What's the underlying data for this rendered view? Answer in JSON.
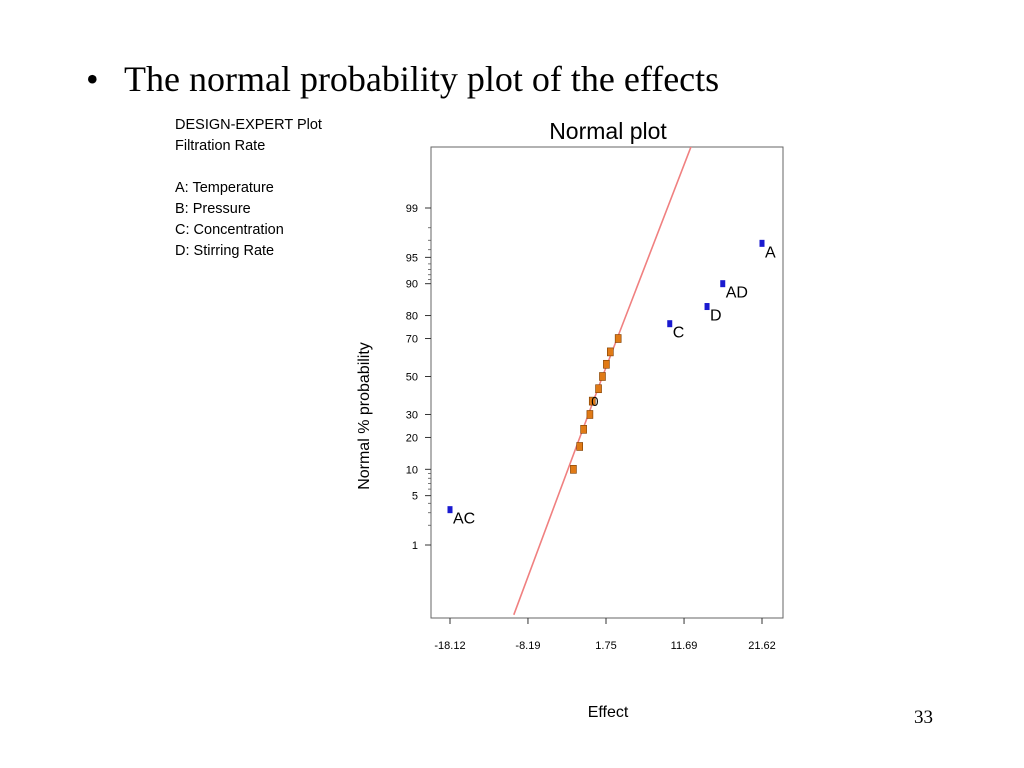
{
  "slide": {
    "title": "The normal probability plot of the effects",
    "bullet": "•",
    "page_number": "33"
  },
  "info_panel": {
    "heading": "DESIGN-EXPERT Plot",
    "response": "Filtration Rate",
    "factors": [
      "A: Temperature",
      "B: Pressure",
      "C: Concentration",
      "D: Stirring Rate"
    ]
  },
  "chart_data": {
    "type": "scatter",
    "title": "Normal plot",
    "xlabel": "Effect",
    "ylabel": "Normal % probability",
    "x_scale": "linear",
    "y_scale": "normal-probability",
    "xlim": [
      -19.5,
      23.5
    ],
    "x_ticks": [
      -18.12,
      -8.19,
      1.75,
      11.69,
      21.62
    ],
    "x_tick_labels": [
      "-18.12",
      "-8.19",
      "1.75",
      "11.69",
      "21.62"
    ],
    "y_ticks": [
      1,
      5,
      10,
      20,
      30,
      50,
      70,
      80,
      90,
      95,
      99
    ],
    "y_tick_labels": [
      "1",
      "5",
      "10",
      "20",
      "30",
      "50",
      "70",
      "80",
      "90",
      "95",
      "99"
    ],
    "grid": false,
    "colors": {
      "significant": "#1a1ad0",
      "error": "#e07a16",
      "line": "#f08080"
    },
    "reference_line": {
      "points": [
        [
          -10.0,
          0.05
        ],
        [
          1.3,
          50
        ],
        [
          13.0,
          99.95
        ]
      ]
    },
    "significant_effects": [
      {
        "name": "A",
        "x": 21.62,
        "y": 96.7
      },
      {
        "name": "AD",
        "x": 16.62,
        "y": 90.0
      },
      {
        "name": "D",
        "x": 14.62,
        "y": 83.3
      },
      {
        "name": "C",
        "x": 9.87,
        "y": 76.7
      },
      {
        "name": "AC",
        "x": -18.12,
        "y": 3.3
      }
    ],
    "error_effects": [
      {
        "x": -2.4,
        "y": 10.0
      },
      {
        "x": -1.6,
        "y": 16.7
      },
      {
        "x": -1.1,
        "y": 23.3
      },
      {
        "x": -0.3,
        "y": 30.0
      },
      {
        "x": 0.0,
        "y": 36.7
      },
      {
        "x": 0.8,
        "y": 43.3
      },
      {
        "x": 1.3,
        "y": 50.0
      },
      {
        "x": 1.8,
        "y": 56.7
      },
      {
        "x": 2.3,
        "y": 63.3
      },
      {
        "x": 3.3,
        "y": 70.0
      }
    ],
    "error_point_label": "0"
  }
}
